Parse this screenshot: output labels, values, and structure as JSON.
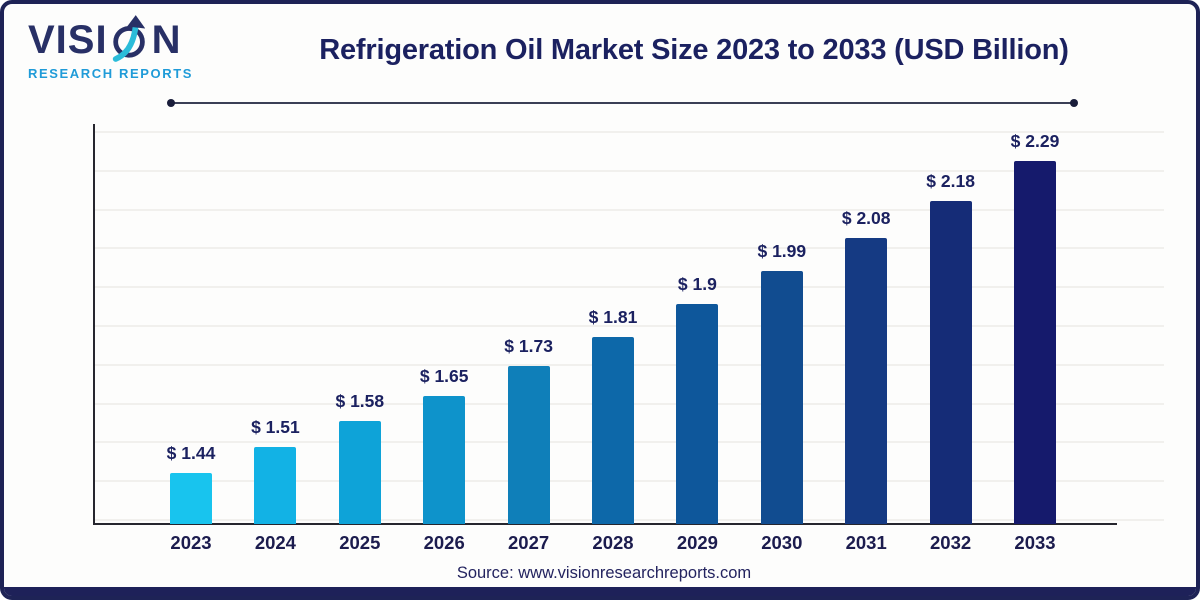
{
  "logo": {
    "word_start": "VISI",
    "word_end": "N",
    "subtitle": "RESEARCH REPORTS"
  },
  "header": {
    "title": "Refrigeration Oil Market Size 2023 to 2033 (USD Billion)"
  },
  "footer": {
    "source": "Source: www.visionresearchreports.com"
  },
  "colors": {
    "border_navy": "#1e2356",
    "title_navy": "#1b2160",
    "logo_blue": "#1f9bd8",
    "logo_teal": "#2bbcd9",
    "grid": "#f1f0ed",
    "axis": "#26262e",
    "footer_bar": "#1e2159"
  },
  "chart_data": {
    "type": "bar",
    "title": "Refrigeration Oil Market Size 2023 to 2033 (USD Billion)",
    "xlabel": "",
    "ylabel": "",
    "categories": [
      "2023",
      "2024",
      "2025",
      "2026",
      "2027",
      "2028",
      "2029",
      "2030",
      "2031",
      "2032",
      "2033"
    ],
    "values": [
      1.44,
      1.51,
      1.58,
      1.65,
      1.73,
      1.81,
      1.9,
      1.99,
      2.08,
      2.18,
      2.29
    ],
    "labels": [
      "$ 1.44",
      "$ 1.51",
      "$ 1.58",
      "$ 1.65",
      "$ 1.73",
      "$ 1.81",
      "$ 1.9",
      "$ 1.99",
      "$ 2.08",
      "$ 2.18",
      "$ 2.29"
    ],
    "bar_colors": [
      "#18C4EE",
      "#12B2E5",
      "#0EA3D8",
      "#0E93CB",
      "#0F7FB9",
      "#0D68A9",
      "#0E579B",
      "#114C90",
      "#153A83",
      "#152C77",
      "#151A6C"
    ],
    "unit": "USD Billion",
    "ylim": [
      1.3,
      2.29
    ],
    "grid": "horizontal-light",
    "legend": "none"
  }
}
